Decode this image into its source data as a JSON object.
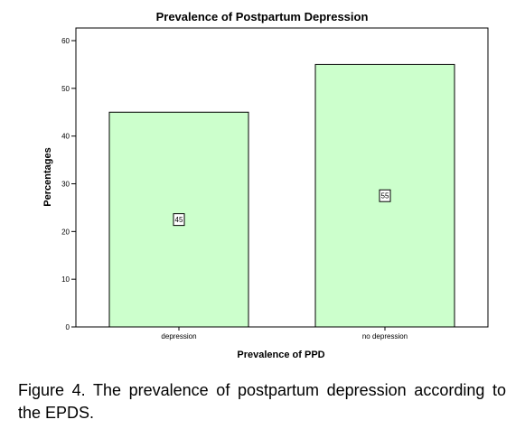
{
  "chart_data": {
    "type": "bar",
    "title": "Prevalence of Postpartum Depression",
    "xlabel": "Prevalence of PPD",
    "ylabel": "Percentages",
    "categories": [
      "depression",
      "no depression"
    ],
    "values": [
      45,
      55
    ],
    "data_labels": [
      "45",
      "55"
    ],
    "ylim": [
      0,
      60
    ],
    "yticks": [
      0,
      10,
      20,
      30,
      40,
      50,
      60
    ],
    "grid": false,
    "bar_color": "#ccffcc",
    "bar_edge_color": "#000000"
  },
  "caption": {
    "label": "Figure 4.",
    "text": " The prevalence of postpartum depression according to the EPDS."
  }
}
